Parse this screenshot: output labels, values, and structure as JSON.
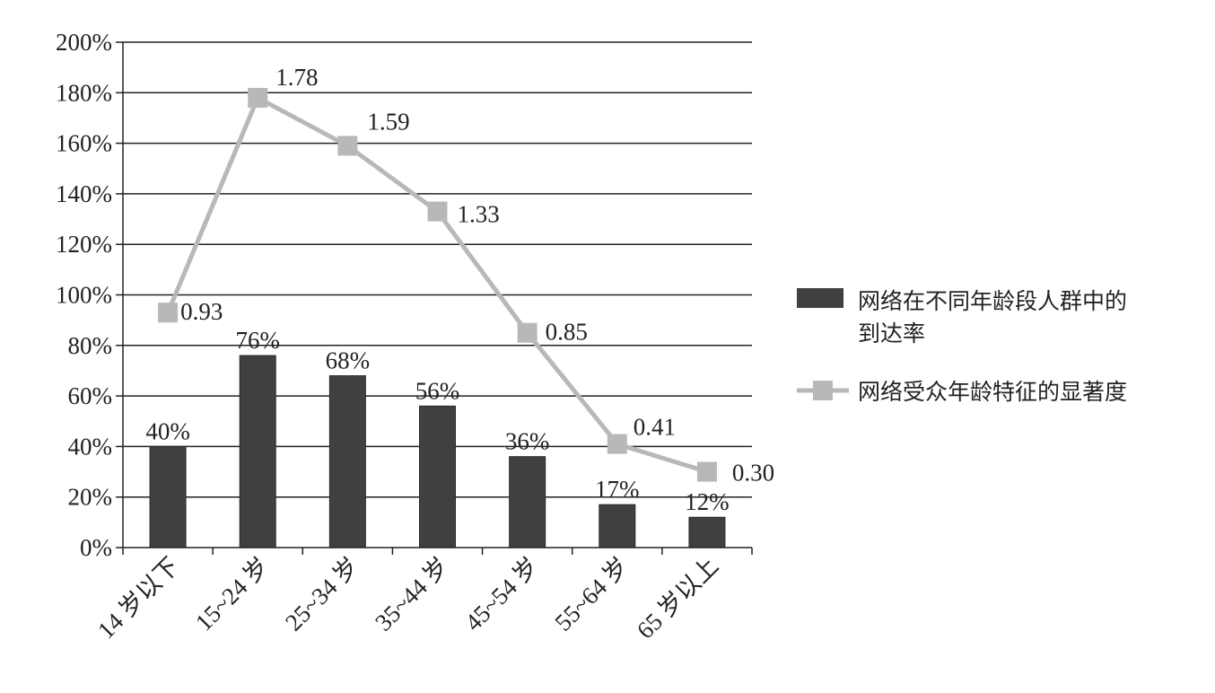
{
  "chart_data": {
    "type": "bar",
    "categories": [
      "14 岁以下",
      "15~24 岁",
      "25~34 岁",
      "35~44 岁",
      "45~54 岁",
      "55~64 岁",
      "65 岁以上"
    ],
    "ylim": [
      0,
      200
    ],
    "y_ticks": [
      0,
      20,
      40,
      60,
      80,
      100,
      120,
      140,
      160,
      180,
      200
    ],
    "y_tick_labels": [
      "0%",
      "20%",
      "40%",
      "60%",
      "80%",
      "100%",
      "120%",
      "140%",
      "160%",
      "180%",
      "200%"
    ],
    "grid": true,
    "legend_position": "right",
    "series": [
      {
        "name": "网络在不同年龄段人群中的到达率",
        "type": "bar",
        "color": "#404040",
        "values": [
          40,
          76,
          68,
          56,
          36,
          17,
          12
        ],
        "labels": [
          "40%",
          "76%",
          "68%",
          "56%",
          "36%",
          "17%",
          "12%"
        ]
      },
      {
        "name": "网络受众年龄特征的显著度",
        "type": "line",
        "color": "#b8b8b8",
        "values": [
          0.93,
          1.78,
          1.59,
          1.33,
          0.85,
          0.41,
          0.3
        ],
        "labels": [
          "0.93",
          "1.78",
          "1.59",
          "1.33",
          "0.85",
          "0.41",
          "0.30"
        ]
      }
    ],
    "legend": {
      "bar_label_line1": "网络在不同年龄段人群中的",
      "bar_label_line2": "到达率",
      "line_label": "网络受众年龄特征的显著度"
    }
  }
}
